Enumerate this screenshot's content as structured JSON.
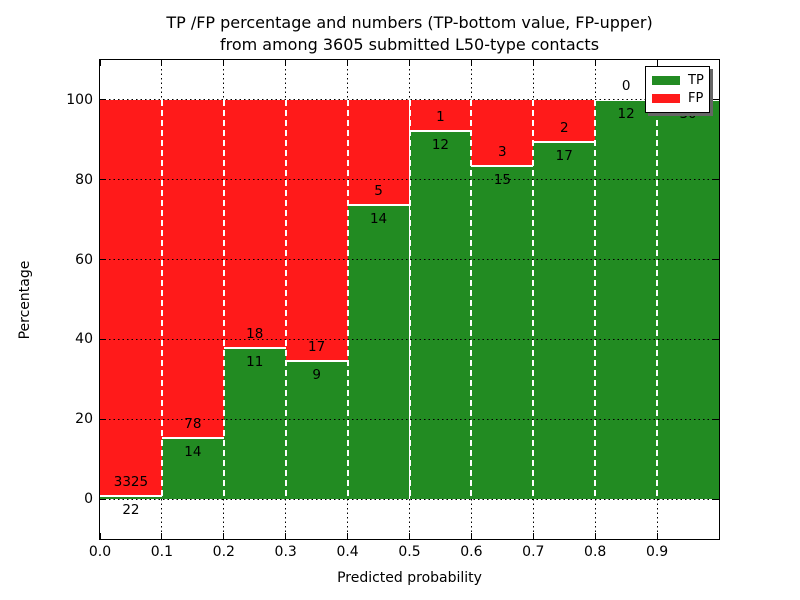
{
  "figure": {
    "title_line1": "TP /FP percentage and numbers (TP-bottom value, FP-upper)",
    "title_line2": "from among 3605 submitted L50-type contacts"
  },
  "chart_data": {
    "type": "bar",
    "stacked": true,
    "normalized": "each bar scaled to 100%",
    "title": "TP /FP percentage and numbers (TP-bottom value, FP-upper) from among 3605 submitted L50-type contacts",
    "xlabel": "Predicted probability",
    "ylabel": "Percentage",
    "total_submitted_contacts": 3605,
    "bin_edges": [
      0.0,
      0.1,
      0.2,
      0.3,
      0.4,
      0.5,
      0.6,
      0.7,
      0.8,
      0.9,
      1.0
    ],
    "x_tick_labels": [
      "0.0",
      "0.1",
      "0.2",
      "0.3",
      "0.4",
      "0.5",
      "0.6",
      "0.7",
      "0.8",
      "0.9"
    ],
    "y_tick_values": [
      0,
      20,
      40,
      60,
      80,
      100
    ],
    "y_tick_labels": [
      "0",
      "20",
      "40",
      "60",
      "80",
      "100"
    ],
    "xlim": [
      0.0,
      1.0
    ],
    "ylim": [
      -10,
      110
    ],
    "grid": true,
    "series": [
      {
        "name": "TP",
        "color": "#228b22",
        "counts": [
          22,
          14,
          11,
          9,
          14,
          12,
          15,
          17,
          12,
          30
        ]
      },
      {
        "name": "FP",
        "color": "#ff1a1a",
        "counts": [
          3325,
          78,
          18,
          17,
          5,
          1,
          3,
          2,
          0,
          0
        ]
      }
    ],
    "tp_percent_per_bin": [
      0.66,
      15.22,
      37.93,
      34.62,
      73.68,
      92.31,
      83.33,
      89.47,
      100.0,
      100.0
    ],
    "legend": {
      "position": "upper right",
      "entries": [
        {
          "label": "TP",
          "color": "#228b22"
        },
        {
          "label": "FP",
          "color": "#ff1a1a"
        }
      ]
    }
  }
}
